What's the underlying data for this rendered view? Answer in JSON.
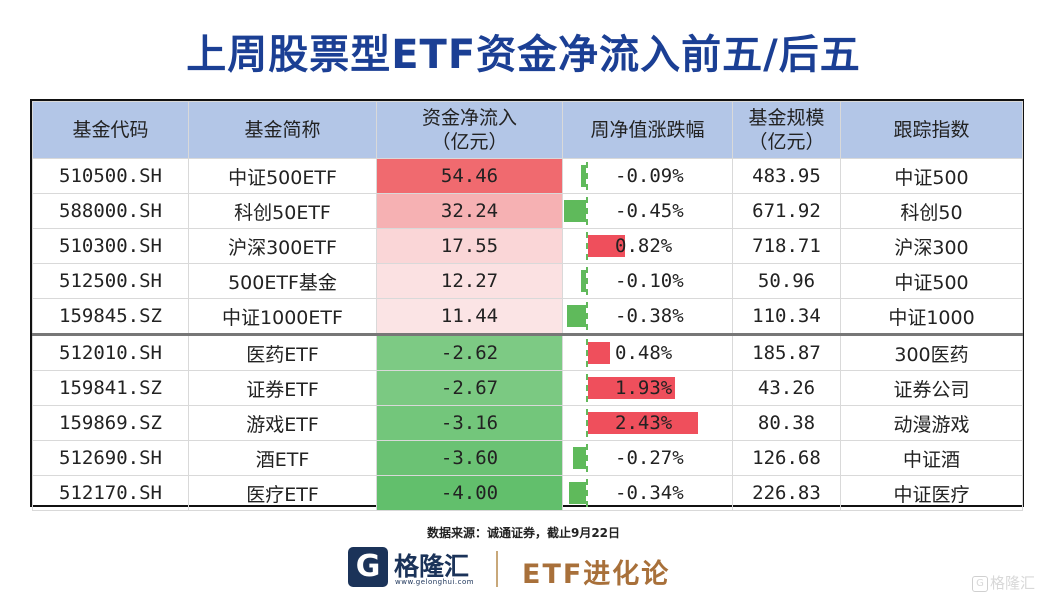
{
  "title": "上周股票型ETF资金净流入前五/后五",
  "colors": {
    "title": "#1b3f94",
    "header_bg": "#b3c6e7",
    "positive_bar": "#ef4f5c",
    "negative_bar": "#5fba5b"
  },
  "headers": {
    "code": "基金代码",
    "name": "基金简称",
    "flow_l1": "资金净流入",
    "flow_l2": "（亿元）",
    "chg": "周净值涨跌幅",
    "scale_l1": "基金规模",
    "scale_l2": "（亿元）",
    "index": "跟踪指数"
  },
  "rows": [
    {
      "code": "510500.SH",
      "name": "中证500ETF",
      "flow": "54.46",
      "chg": "-0.09%",
      "chg_value": -0.09,
      "scale": "483.95",
      "index": "中证500",
      "flow_bg": "#f06a6f"
    },
    {
      "code": "588000.SH",
      "name": "科创50ETF",
      "flow": "32.24",
      "chg": "-0.45%",
      "chg_value": -0.45,
      "scale": "671.92",
      "index": "科创50",
      "flow_bg": "#f6b1b3"
    },
    {
      "code": "510300.SH",
      "name": "沪深300ETF",
      "flow": "17.55",
      "chg": "0.82%",
      "chg_value": 0.82,
      "scale": "718.71",
      "index": "沪深300",
      "flow_bg": "#fad6d7"
    },
    {
      "code": "512500.SH",
      "name": "500ETF基金",
      "flow": "12.27",
      "chg": "-0.10%",
      "chg_value": -0.1,
      "scale": "50.96",
      "index": "中证500",
      "flow_bg": "#fbe1e2"
    },
    {
      "code": "159845.SZ",
      "name": "中证1000ETF",
      "flow": "11.44",
      "chg": "-0.38%",
      "chg_value": -0.38,
      "scale": "110.34",
      "index": "中证1000",
      "flow_bg": "#fbe4e5"
    },
    {
      "code": "512010.SH",
      "name": "医药ETF",
      "flow": "-2.62",
      "chg": "0.48%",
      "chg_value": 0.48,
      "scale": "185.87",
      "index": "300医药",
      "flow_bg": "#7dca84"
    },
    {
      "code": "159841.SZ",
      "name": "证券ETF",
      "flow": "-2.67",
      "chg": "1.93%",
      "chg_value": 1.93,
      "scale": "43.26",
      "index": "证券公司",
      "flow_bg": "#7bc982"
    },
    {
      "code": "159869.SZ",
      "name": "游戏ETF",
      "flow": "-3.16",
      "chg": "2.43%",
      "chg_value": 2.43,
      "scale": "80.38",
      "index": "动漫游戏",
      "flow_bg": "#73c67b"
    },
    {
      "code": "512690.SH",
      "name": "酒ETF",
      "flow": "-3.60",
      "chg": "-0.27%",
      "chg_value": -0.27,
      "scale": "126.68",
      "index": "中证酒",
      "flow_bg": "#6bc274"
    },
    {
      "code": "512170.SH",
      "name": "医疗ETF",
      "flow": "-4.00",
      "chg": "-0.34%",
      "chg_value": -0.34,
      "scale": "226.83",
      "index": "中证医疗",
      "flow_bg": "#62bf6c"
    }
  ],
  "footer": {
    "source": "数据来源：诚通证券，截止9月22日",
    "logo_mark": "G",
    "logo_text": "格隆汇",
    "logo_url": "www.gelonghui.com",
    "brand": "ETF进化论",
    "watermark_mark": "G",
    "watermark": "格隆汇"
  }
}
